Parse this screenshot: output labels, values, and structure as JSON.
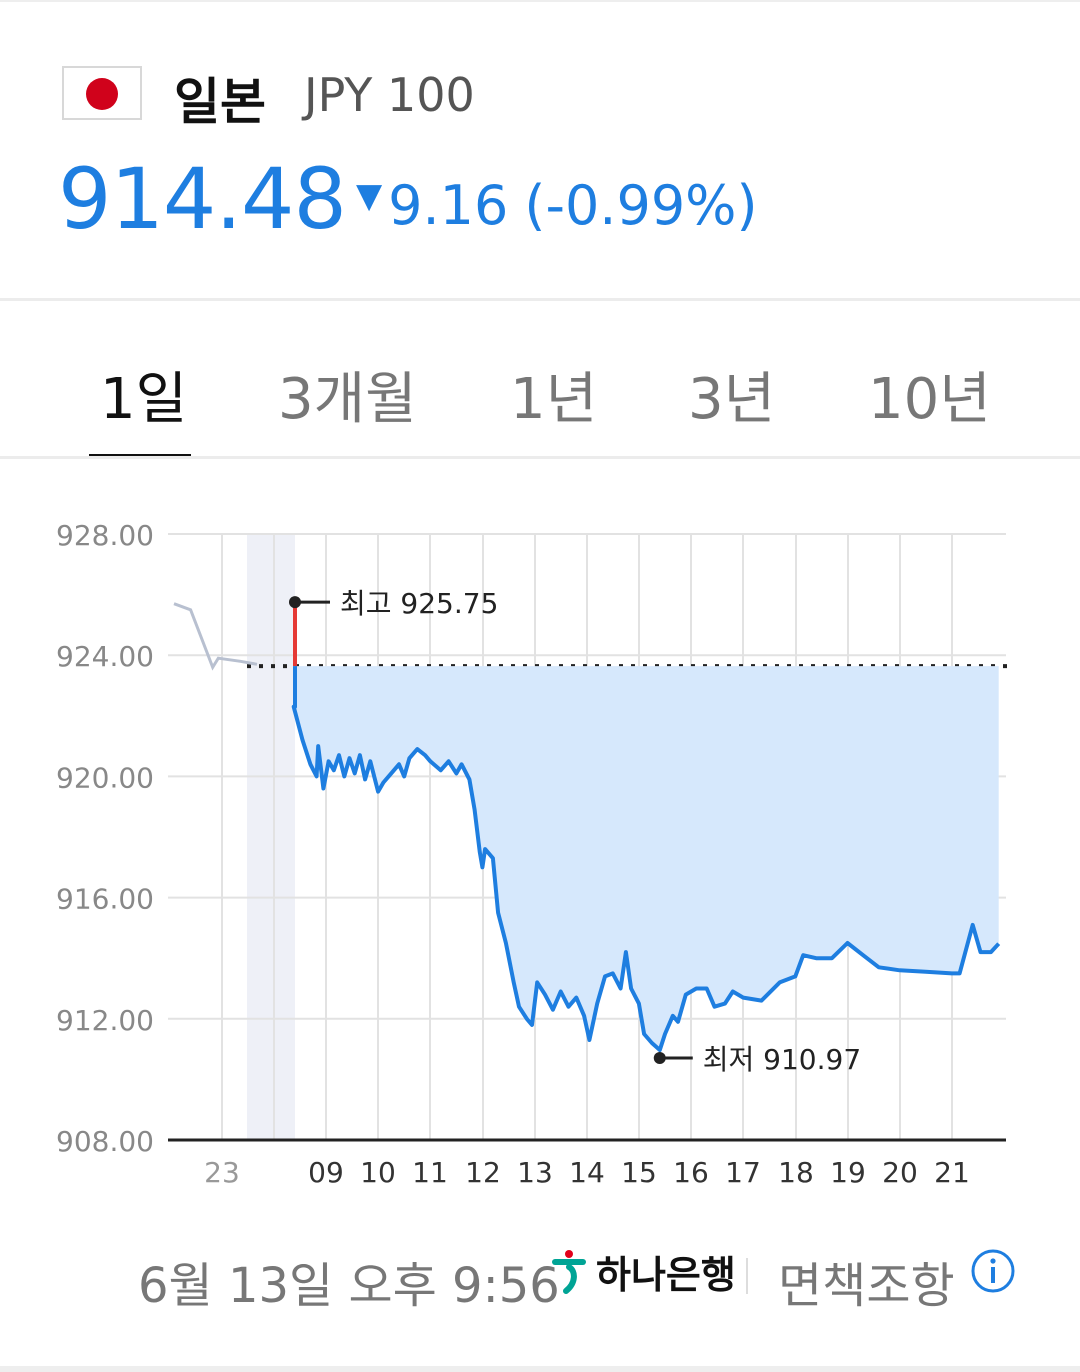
{
  "header": {
    "country": "일본",
    "currency_code": "JPY 100",
    "price": "914.48",
    "change_value": "9.16",
    "change_percent": "(-0.99%)",
    "direction_icon": "down-triangle-icon",
    "accent_color": "#1e7ee0"
  },
  "tabs": [
    {
      "label": "1일",
      "active": true
    },
    {
      "label": "3개월",
      "active": false
    },
    {
      "label": "1년",
      "active": false
    },
    {
      "label": "3년",
      "active": false
    },
    {
      "label": "10년",
      "active": false
    }
  ],
  "chart_data": {
    "type": "line",
    "ylim": [
      908,
      928
    ],
    "y_ticks": [
      "928.00",
      "924.00",
      "920.00",
      "916.00",
      "912.00",
      "908.00"
    ],
    "x_ticks": [
      "23",
      "moon-icon",
      "09",
      "10",
      "11",
      "12",
      "13",
      "14",
      "15",
      "16",
      "17",
      "18",
      "19",
      "20",
      "21"
    ],
    "previous_close": 923.64,
    "high_label": "최고 925.75",
    "high_value": 925.75,
    "low_label": "최저 910.97",
    "low_value": 910.97,
    "premarket_series": [
      {
        "t": 22.2,
        "v": 925.7
      },
      {
        "t": 22.5,
        "v": 925.5
      },
      {
        "t": 22.9,
        "v": 923.6
      },
      {
        "t": 23.0,
        "v": 923.9
      },
      {
        "t": 23.4,
        "v": 923.8
      },
      {
        "t": 23.7,
        "v": 923.7
      }
    ],
    "series": [
      {
        "t": 8.38,
        "v": 922.3
      },
      {
        "t": 8.55,
        "v": 921.2
      },
      {
        "t": 8.7,
        "v": 920.4
      },
      {
        "t": 8.82,
        "v": 920.0
      },
      {
        "t": 8.85,
        "v": 921.0
      },
      {
        "t": 8.95,
        "v": 919.6
      },
      {
        "t": 9.05,
        "v": 920.5
      },
      {
        "t": 9.15,
        "v": 920.2
      },
      {
        "t": 9.25,
        "v": 920.7
      },
      {
        "t": 9.35,
        "v": 920.0
      },
      {
        "t": 9.45,
        "v": 920.6
      },
      {
        "t": 9.55,
        "v": 920.1
      },
      {
        "t": 9.65,
        "v": 920.7
      },
      {
        "t": 9.75,
        "v": 919.9
      },
      {
        "t": 9.85,
        "v": 920.5
      },
      {
        "t": 10.0,
        "v": 919.5
      },
      {
        "t": 10.1,
        "v": 919.8
      },
      {
        "t": 10.25,
        "v": 920.1
      },
      {
        "t": 10.4,
        "v": 920.4
      },
      {
        "t": 10.5,
        "v": 920.0
      },
      {
        "t": 10.6,
        "v": 920.6
      },
      {
        "t": 10.75,
        "v": 920.9
      },
      {
        "t": 10.9,
        "v": 920.7
      },
      {
        "t": 11.0,
        "v": 920.5
      },
      {
        "t": 11.2,
        "v": 920.2
      },
      {
        "t": 11.35,
        "v": 920.5
      },
      {
        "t": 11.5,
        "v": 920.1
      },
      {
        "t": 11.6,
        "v": 920.4
      },
      {
        "t": 11.75,
        "v": 919.9
      },
      {
        "t": 11.85,
        "v": 918.9
      },
      {
        "t": 11.95,
        "v": 917.5
      },
      {
        "t": 12.0,
        "v": 917.0
      },
      {
        "t": 12.05,
        "v": 917.6
      },
      {
        "t": 12.2,
        "v": 917.3
      },
      {
        "t": 12.3,
        "v": 915.5
      },
      {
        "t": 12.45,
        "v": 914.5
      },
      {
        "t": 12.6,
        "v": 913.2
      },
      {
        "t": 12.7,
        "v": 912.4
      },
      {
        "t": 12.85,
        "v": 912.0
      },
      {
        "t": 12.95,
        "v": 911.8
      },
      {
        "t": 13.05,
        "v": 913.2
      },
      {
        "t": 13.2,
        "v": 912.8
      },
      {
        "t": 13.35,
        "v": 912.3
      },
      {
        "t": 13.5,
        "v": 912.9
      },
      {
        "t": 13.65,
        "v": 912.4
      },
      {
        "t": 13.8,
        "v": 912.7
      },
      {
        "t": 13.95,
        "v": 912.1
      },
      {
        "t": 14.05,
        "v": 911.3
      },
      {
        "t": 14.2,
        "v": 912.5
      },
      {
        "t": 14.35,
        "v": 913.4
      },
      {
        "t": 14.5,
        "v": 913.5
      },
      {
        "t": 14.65,
        "v": 913.0
      },
      {
        "t": 14.75,
        "v": 914.2
      },
      {
        "t": 14.85,
        "v": 913.0
      },
      {
        "t": 15.0,
        "v": 912.5
      },
      {
        "t": 15.1,
        "v": 911.5
      },
      {
        "t": 15.25,
        "v": 911.2
      },
      {
        "t": 15.4,
        "v": 910.97
      },
      {
        "t": 15.5,
        "v": 911.5
      },
      {
        "t": 15.65,
        "v": 912.1
      },
      {
        "t": 15.75,
        "v": 911.9
      },
      {
        "t": 15.9,
        "v": 912.8
      },
      {
        "t": 16.1,
        "v": 913.0
      },
      {
        "t": 16.3,
        "v": 913.0
      },
      {
        "t": 16.45,
        "v": 912.4
      },
      {
        "t": 16.65,
        "v": 912.5
      },
      {
        "t": 16.8,
        "v": 912.9
      },
      {
        "t": 17.0,
        "v": 912.7
      },
      {
        "t": 17.35,
        "v": 912.6
      },
      {
        "t": 17.7,
        "v": 913.2
      },
      {
        "t": 18.0,
        "v": 913.4
      },
      {
        "t": 18.15,
        "v": 914.1
      },
      {
        "t": 18.4,
        "v": 914.0
      },
      {
        "t": 18.7,
        "v": 914.0
      },
      {
        "t": 19.0,
        "v": 914.5
      },
      {
        "t": 19.3,
        "v": 914.1
      },
      {
        "t": 19.6,
        "v": 913.7
      },
      {
        "t": 20.0,
        "v": 913.6
      },
      {
        "t": 20.5,
        "v": 913.55
      },
      {
        "t": 21.0,
        "v": 913.5
      },
      {
        "t": 21.15,
        "v": 913.5
      },
      {
        "t": 21.4,
        "v": 915.1
      },
      {
        "t": 21.55,
        "v": 914.2
      },
      {
        "t": 21.75,
        "v": 914.2
      },
      {
        "t": 21.9,
        "v": 914.48
      }
    ],
    "colors": {
      "line": "#1e7ee0",
      "fill": "#d6e8fc",
      "premarket": "#b8c0d0",
      "high_marker": "#e53935",
      "night_band": "#eef0f7",
      "grid": "#e2e2e2"
    }
  },
  "footer": {
    "timestamp": "6월 13일 오후 9:56",
    "bank_name": "하나은행",
    "bank_logo_icon": "hana-bank-logo-icon",
    "disclaimer": "면책조항",
    "info_icon": "info-icon"
  }
}
